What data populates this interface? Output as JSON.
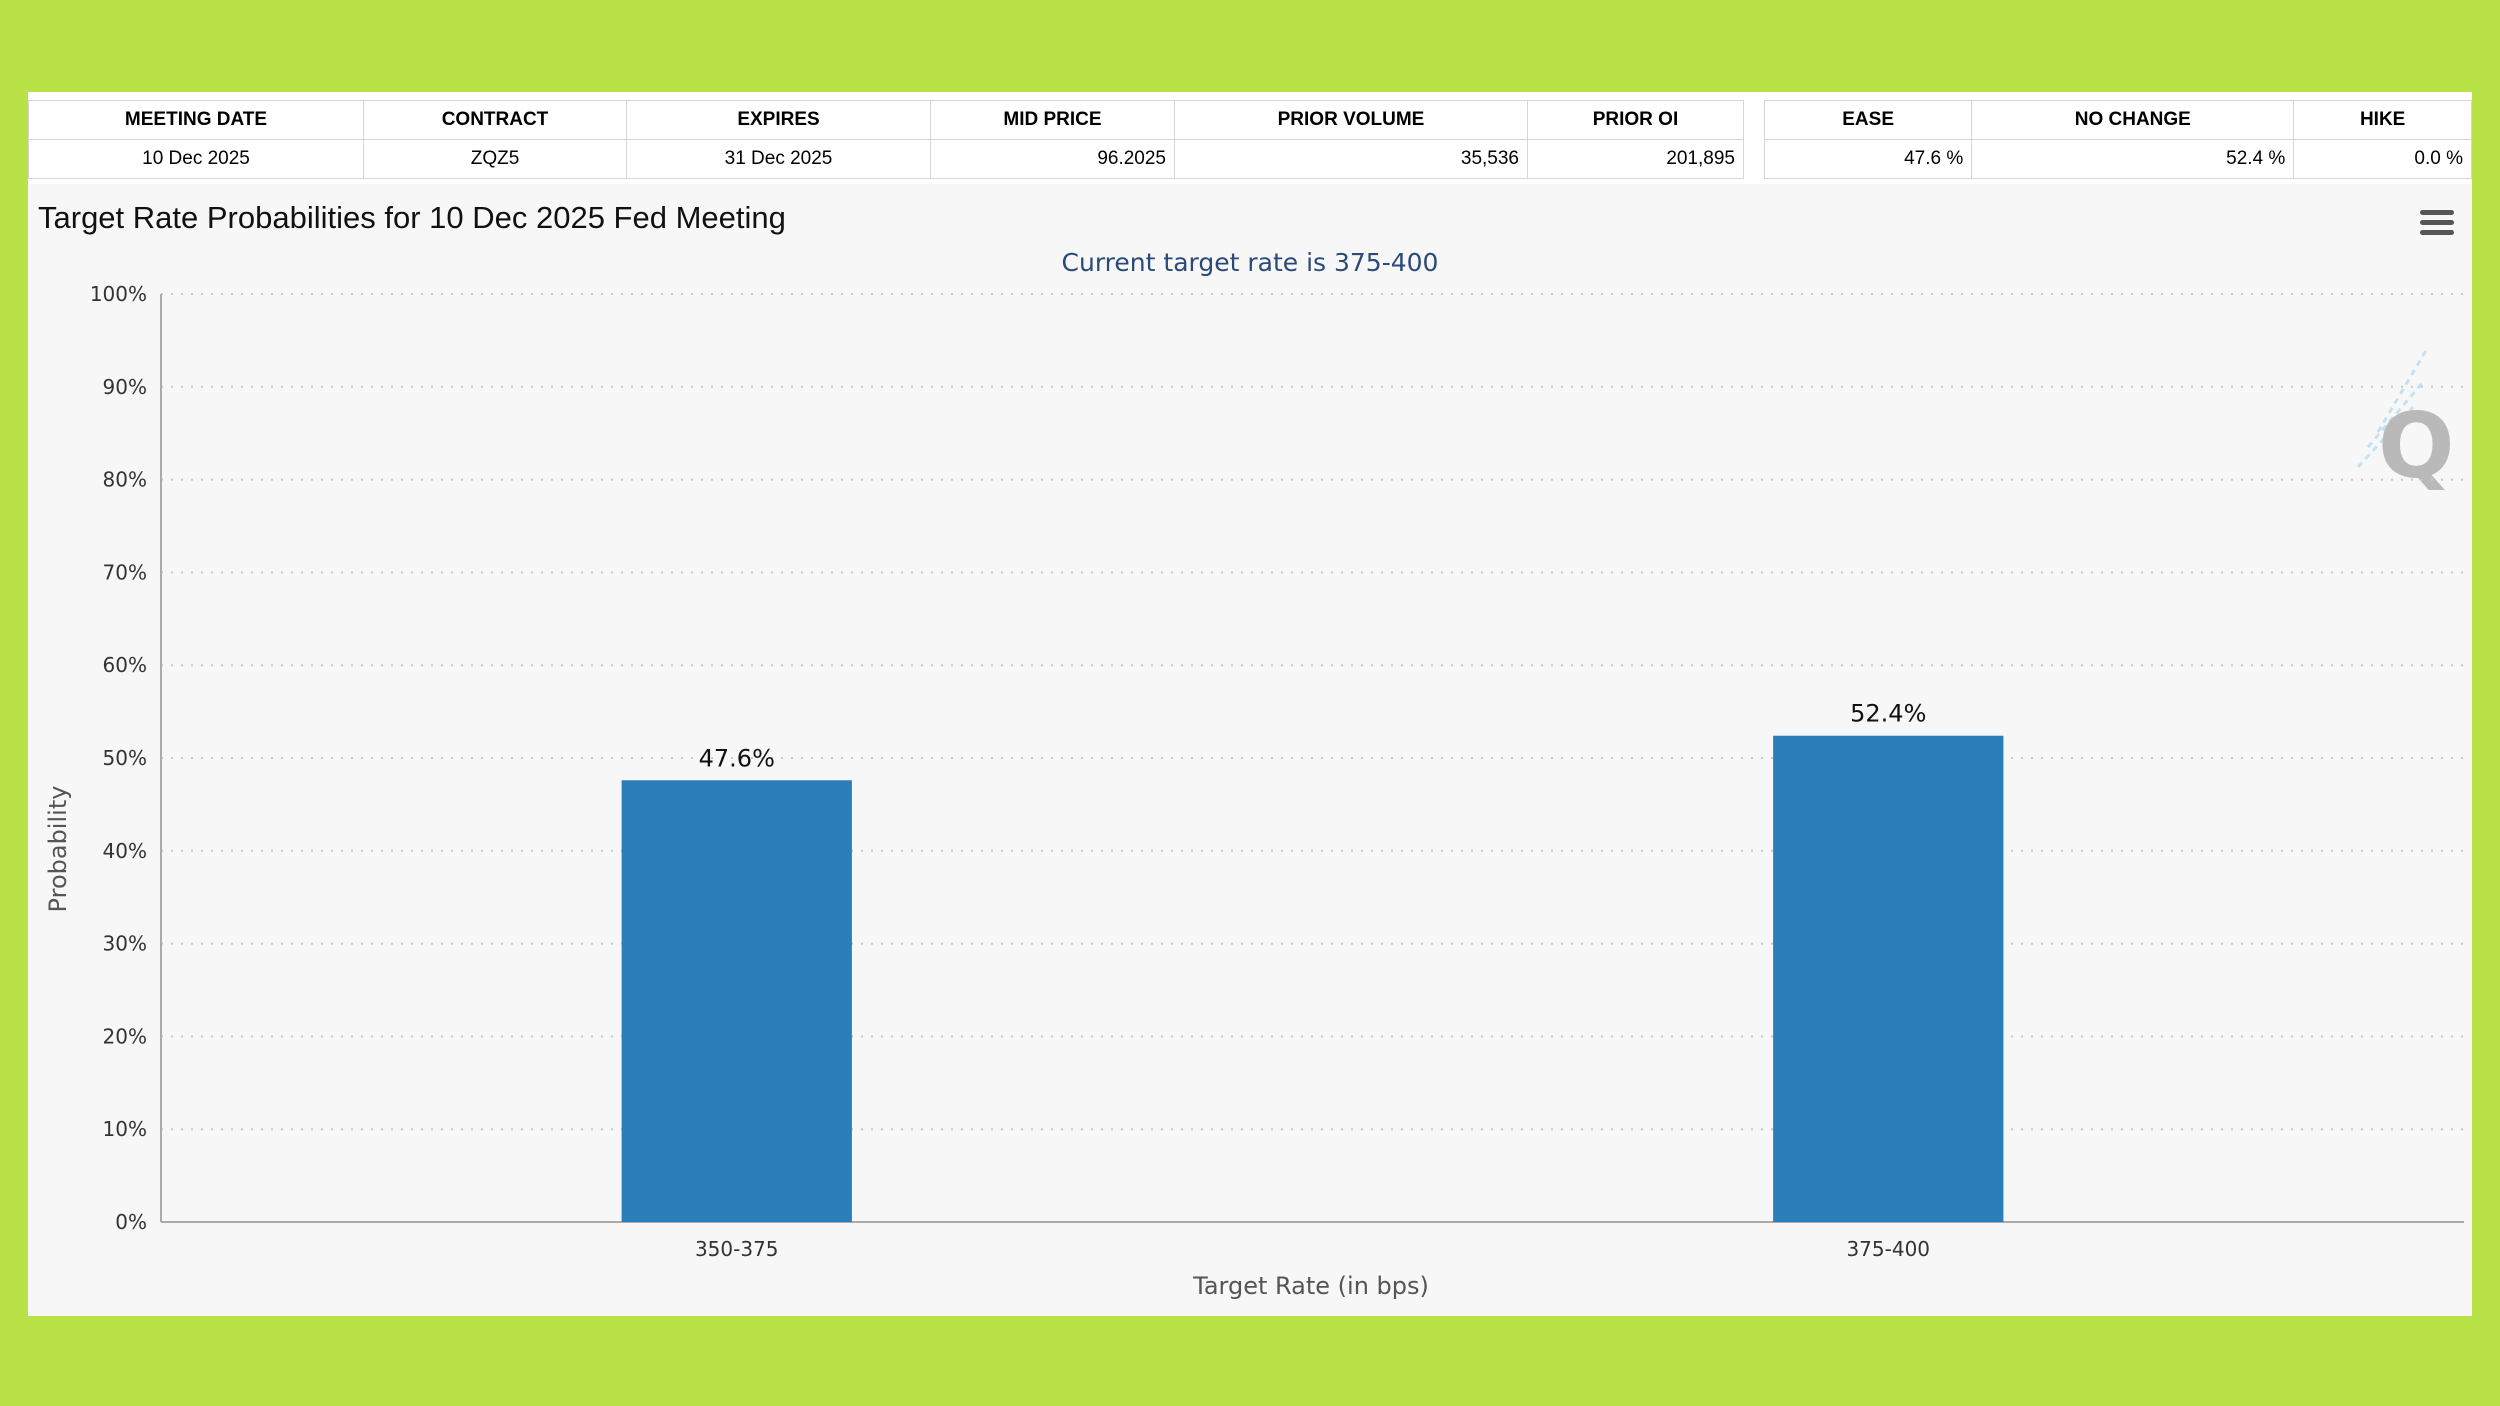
{
  "table_left": {
    "headers": [
      "MEETING DATE",
      "CONTRACT",
      "EXPIRES",
      "MID PRICE",
      "PRIOR VOLUME",
      "PRIOR OI"
    ],
    "row": [
      "10 Dec 2025",
      "ZQZ5",
      "31 Dec 2025",
      "96.2025",
      "35,536",
      "201,895"
    ]
  },
  "table_right": {
    "headers": [
      "EASE",
      "NO CHANGE",
      "HIKE"
    ],
    "row": [
      "47.6 %",
      "52.4 %",
      "0.0 %"
    ]
  },
  "menu_icon": "hamburger-menu-icon",
  "watermark_icon": "q-logo-icon",
  "colors": {
    "bar": "#2a7fba",
    "background": "#f7f7f7",
    "frame": "#b8e246"
  },
  "chart_data": {
    "type": "bar",
    "title": "Target Rate Probabilities for 10 Dec 2025 Fed Meeting",
    "subtitle": "Current target rate is 375-400",
    "categories": [
      "350-375",
      "375-400"
    ],
    "values": [
      47.6,
      52.4
    ],
    "data_labels": [
      "47.6%",
      "52.4%"
    ],
    "xlabel": "Target Rate (in bps)",
    "ylabel": "Probability",
    "ylim": [
      0,
      100
    ],
    "yticks": [
      0,
      10,
      20,
      30,
      40,
      50,
      60,
      70,
      80,
      90,
      100
    ],
    "ytick_labels": [
      "0%",
      "10%",
      "20%",
      "30%",
      "40%",
      "50%",
      "60%",
      "70%",
      "80%",
      "90%",
      "100%"
    ],
    "grid": true
  }
}
